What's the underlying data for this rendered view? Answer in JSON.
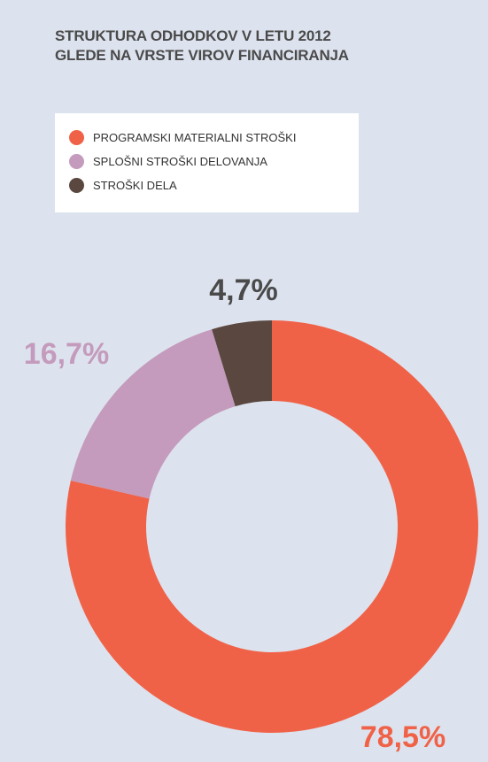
{
  "chart_data": {
    "type": "donut",
    "title": "STRUKTURA ODHODKOV V LETU 2012\nGLEDE NA VRSTE VIROV FINANCIRANJA",
    "categories": [
      "PROGRAMSKI MATERIALNI STROŠKI",
      "SPLOŠNI STROŠKI DELOVANJA",
      "STROŠKI DELA"
    ],
    "values": [
      78.5,
      16.7,
      4.7
    ],
    "value_labels": [
      "78,5%",
      "16,7%",
      "4,7%"
    ],
    "colors": [
      "#f06248",
      "#c49bbc",
      "#5a4840"
    ]
  }
}
